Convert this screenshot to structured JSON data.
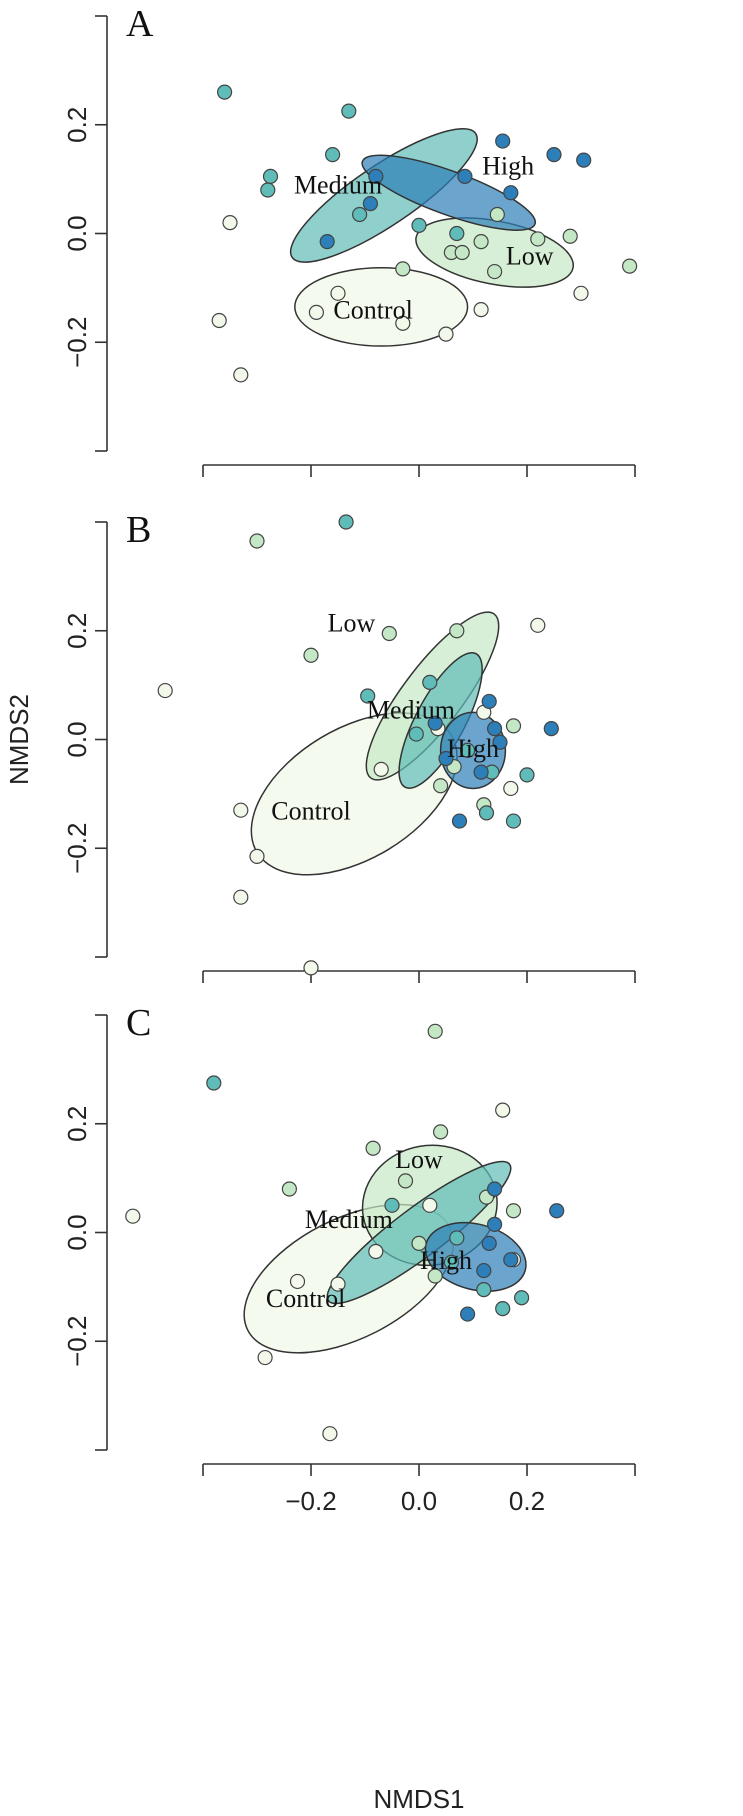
{
  "figure": {
    "xlabel": "NMDS1",
    "ylabel": "NMDS2",
    "xlim": [
      -0.4,
      0.4
    ],
    "ylim": [
      -0.4,
      0.4
    ],
    "x_ticks": [
      -0.2,
      0.0,
      0.2
    ],
    "x_tick_labels": [
      "−0.2",
      "0.0",
      "0.2"
    ],
    "y_ticks": [
      -0.2,
      0.0,
      0.2
    ],
    "y_tick_labels": [
      "−0.2",
      "0.0",
      "0.2"
    ],
    "colors": {
      "Control": "#f2f9ea",
      "Low": "#c4e8c5",
      "Medium": "#5fbcb8",
      "High": "#2c7fb8"
    }
  },
  "chart_data": [
    {
      "type": "scatter",
      "panel": "A",
      "ellipses": [
        {
          "group": "Control",
          "cx": -0.07,
          "cy": -0.135,
          "rx": 0.16,
          "ry": 0.072,
          "angle": 0
        },
        {
          "group": "Low",
          "cx": 0.14,
          "cy": -0.035,
          "rx": 0.148,
          "ry": 0.058,
          "angle": 11
        },
        {
          "group": "Medium",
          "cx": -0.065,
          "cy": 0.07,
          "rx": 0.205,
          "ry": 0.055,
          "angle": -34
        },
        {
          "group": "High",
          "cx": 0.055,
          "cy": 0.075,
          "rx": 0.17,
          "ry": 0.04,
          "angle": 20
        }
      ],
      "labels": [
        {
          "text": "Control",
          "group": "Control",
          "x": -0.085,
          "y": -0.14
        },
        {
          "text": "Low",
          "group": "Low",
          "x": 0.205,
          "y": -0.04
        },
        {
          "text": "Medium",
          "group": "Medium",
          "x": -0.15,
          "y": 0.09
        },
        {
          "text": "High",
          "group": "High",
          "x": 0.165,
          "y": 0.125
        }
      ],
      "series": [
        {
          "group": "Control",
          "points": [
            [
              -0.35,
              0.02
            ],
            [
              -0.33,
              -0.26
            ],
            [
              -0.37,
              -0.16
            ],
            [
              -0.15,
              -0.11
            ],
            [
              -0.19,
              -0.145
            ],
            [
              -0.03,
              -0.165
            ],
            [
              0.05,
              -0.185
            ],
            [
              0.115,
              -0.14
            ],
            [
              0.3,
              -0.11
            ]
          ]
        },
        {
          "group": "Low",
          "points": [
            [
              -0.03,
              -0.065
            ],
            [
              0.06,
              -0.035
            ],
            [
              0.08,
              -0.035
            ],
            [
              0.115,
              -0.015
            ],
            [
              0.14,
              -0.07
            ],
            [
              0.145,
              0.035
            ],
            [
              0.22,
              -0.01
            ],
            [
              0.28,
              -0.005
            ],
            [
              0.39,
              -0.06
            ]
          ]
        },
        {
          "group": "Medium",
          "points": [
            [
              -0.36,
              0.26
            ],
            [
              -0.28,
              0.08
            ],
            [
              -0.275,
              0.105
            ],
            [
              -0.16,
              0.145
            ],
            [
              -0.11,
              0.035
            ],
            [
              0.0,
              0.015
            ],
            [
              0.07,
              0.0
            ],
            [
              -0.13,
              0.225
            ]
          ]
        },
        {
          "group": "High",
          "points": [
            [
              -0.17,
              -0.015
            ],
            [
              -0.09,
              0.055
            ],
            [
              -0.08,
              0.105
            ],
            [
              0.085,
              0.105
            ],
            [
              0.155,
              0.17
            ],
            [
              0.17,
              0.075
            ],
            [
              0.25,
              0.145
            ],
            [
              0.305,
              0.135
            ]
          ]
        }
      ]
    },
    {
      "type": "scatter",
      "panel": "B",
      "ellipses": [
        {
          "group": "Control",
          "cx": -0.12,
          "cy": -0.1,
          "rx": 0.21,
          "ry": 0.12,
          "angle": -31
        },
        {
          "group": "Low",
          "cx": 0.025,
          "cy": 0.08,
          "rx": 0.19,
          "ry": 0.055,
          "angle": -53
        },
        {
          "group": "Medium",
          "cx": 0.04,
          "cy": 0.035,
          "rx": 0.14,
          "ry": 0.045,
          "angle": -62
        },
        {
          "group": "High",
          "cx": 0.1,
          "cy": -0.02,
          "rx": 0.06,
          "ry": 0.07,
          "angle": 0
        }
      ],
      "labels": [
        {
          "text": "Control",
          "group": "Control",
          "x": -0.2,
          "y": -0.13
        },
        {
          "text": "Low",
          "group": "Low",
          "x": -0.125,
          "y": 0.215
        },
        {
          "text": "Medium",
          "group": "Medium",
          "x": -0.015,
          "y": 0.055
        },
        {
          "text": "High",
          "group": "High",
          "x": 0.1,
          "y": -0.015
        }
      ],
      "series": [
        {
          "group": "Control",
          "points": [
            [
              -0.47,
              0.09
            ],
            [
              -0.33,
              -0.13
            ],
            [
              -0.3,
              -0.215
            ],
            [
              -0.33,
              -0.29
            ],
            [
              -0.2,
              -0.42
            ],
            [
              -0.07,
              -0.055
            ],
            [
              0.12,
              0.05
            ],
            [
              0.17,
              -0.09
            ],
            [
              0.22,
              0.21
            ],
            [
              0.035,
              0.02
            ]
          ]
        },
        {
          "group": "Low",
          "points": [
            [
              -0.3,
              0.365
            ],
            [
              -0.2,
              0.155
            ],
            [
              -0.055,
              0.195
            ],
            [
              0.07,
              0.2
            ],
            [
              0.175,
              0.025
            ],
            [
              0.12,
              -0.12
            ],
            [
              0.04,
              -0.085
            ],
            [
              0.065,
              -0.05
            ]
          ]
        },
        {
          "group": "Medium",
          "points": [
            [
              -0.135,
              0.4
            ],
            [
              -0.095,
              0.08
            ],
            [
              -0.005,
              0.01
            ],
            [
              0.02,
              0.105
            ],
            [
              0.09,
              -0.02
            ],
            [
              0.2,
              -0.065
            ],
            [
              0.175,
              -0.15
            ],
            [
              0.125,
              -0.135
            ],
            [
              0.135,
              -0.06
            ]
          ]
        },
        {
          "group": "High",
          "points": [
            [
              0.03,
              0.03
            ],
            [
              0.05,
              -0.035
            ],
            [
              0.13,
              0.07
            ],
            [
              0.14,
              0.02
            ],
            [
              0.245,
              0.02
            ],
            [
              0.115,
              -0.06
            ],
            [
              0.075,
              -0.15
            ],
            [
              0.15,
              -0.005
            ]
          ]
        }
      ]
    },
    {
      "type": "scatter",
      "panel": "C",
      "ellipses": [
        {
          "group": "Control",
          "cx": -0.13,
          "cy": -0.085,
          "rx": 0.21,
          "ry": 0.11,
          "angle": -27
        },
        {
          "group": "Low",
          "cx": 0.02,
          "cy": 0.05,
          "rx": 0.125,
          "ry": 0.11,
          "angle": -10
        },
        {
          "group": "Medium",
          "cx": 0.0,
          "cy": 0.0,
          "rx": 0.21,
          "ry": 0.045,
          "angle": -37
        },
        {
          "group": "High",
          "cx": 0.105,
          "cy": -0.045,
          "rx": 0.095,
          "ry": 0.06,
          "angle": 15
        }
      ],
      "labels": [
        {
          "text": "Control",
          "group": "Control",
          "x": -0.21,
          "y": -0.12
        },
        {
          "text": "Low",
          "group": "Low",
          "x": 0.0,
          "y": 0.135
        },
        {
          "text": "Medium",
          "group": "Medium",
          "x": -0.13,
          "y": 0.025
        },
        {
          "text": "High",
          "group": "High",
          "x": 0.05,
          "y": -0.05
        }
      ],
      "series": [
        {
          "group": "Control",
          "points": [
            [
              -0.53,
              0.03
            ],
            [
              -0.285,
              -0.23
            ],
            [
              -0.225,
              -0.09
            ],
            [
              -0.15,
              -0.095
            ],
            [
              -0.165,
              -0.37
            ],
            [
              -0.08,
              -0.035
            ],
            [
              0.155,
              0.225
            ],
            [
              0.175,
              -0.05
            ],
            [
              0.02,
              0.05
            ]
          ]
        },
        {
          "group": "Low",
          "points": [
            [
              0.03,
              0.37
            ],
            [
              0.04,
              0.185
            ],
            [
              -0.085,
              0.155
            ],
            [
              -0.24,
              0.08
            ],
            [
              -0.025,
              0.095
            ],
            [
              0.0,
              -0.02
            ],
            [
              0.125,
              0.065
            ],
            [
              0.175,
              0.04
            ],
            [
              0.03,
              -0.08
            ]
          ]
        },
        {
          "group": "Medium",
          "points": [
            [
              -0.38,
              0.275
            ],
            [
              -0.05,
              0.05
            ],
            [
              0.07,
              -0.01
            ],
            [
              0.06,
              -0.055
            ],
            [
              0.155,
              -0.14
            ],
            [
              0.19,
              -0.12
            ],
            [
              0.12,
              -0.105
            ]
          ]
        },
        {
          "group": "High",
          "points": [
            [
              0.09,
              -0.15
            ],
            [
              0.12,
              -0.07
            ],
            [
              0.13,
              -0.02
            ],
            [
              0.14,
              0.08
            ],
            [
              0.14,
              0.015
            ],
            [
              0.255,
              0.04
            ],
            [
              0.17,
              -0.05
            ]
          ]
        }
      ]
    }
  ]
}
